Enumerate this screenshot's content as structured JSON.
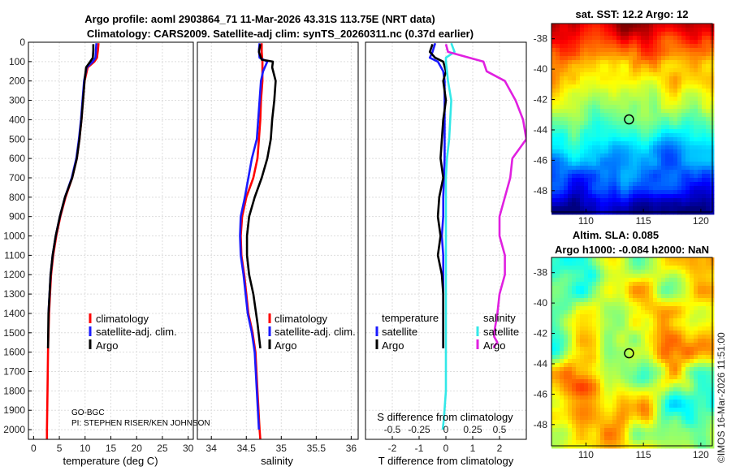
{
  "titles": {
    "line1": "Argo profile: aoml 2903864_71 11-Mar-2026 43.31S 113.75E (NRT data)",
    "line2": "Climatology: CARS2009. Satellite-adj clim: synTS_20260311.nc (0.37d earlier)",
    "sst": "sat. SST: 12.2 Argo: 12",
    "sla1": "Altim. SLA: 0.085",
    "sla2": "Argo h1000: -0.084 h2000: NaN"
  },
  "footer": {
    "program": "GO-BGC",
    "pi": "PI: STEPHEN RISER/KEN JOHNSON",
    "imos": "©IMOS 16-Mar-2026 11:51:00"
  },
  "colors": {
    "climatology": "#ff0000",
    "satellite": "#1a1aff",
    "argo": "#000000",
    "sat_salinity": "#33e8e8",
    "argo_salinity": "#e020e0"
  },
  "legends": {
    "temp": [
      "climatology",
      "satellite-adj. clim.",
      "Argo"
    ],
    "sal": [
      "climatology",
      "satellite-adj. clim.",
      "Argo"
    ],
    "diff_t_header": "temperature",
    "diff_s_header": "salinity",
    "diff_t": [
      "satellite",
      "Argo"
    ],
    "diff_s": [
      "satellite",
      "Argo"
    ]
  },
  "chart_data": [
    {
      "type": "line",
      "name": "temperature",
      "xlabel": "temperature (deg C)",
      "xlim": [
        -1,
        31
      ],
      "xticks": [
        0,
        5,
        10,
        15,
        20,
        25,
        30
      ],
      "ylim": [
        2050,
        0
      ],
      "yticks": [
        0,
        100,
        200,
        300,
        400,
        500,
        600,
        700,
        800,
        900,
        1000,
        1100,
        1200,
        1300,
        1400,
        1500,
        1600,
        1700,
        1800,
        1900,
        2000
      ],
      "series": [
        {
          "name": "climatology",
          "color": "#ff0000",
          "x": [
            12.6,
            12.5,
            12.3,
            11.8,
            10.5,
            9.9,
            9.6,
            9.3,
            8.9,
            8.4,
            7.5,
            6.2,
            5.2,
            4.4,
            3.8,
            3.4,
            3.2,
            3.0,
            2.9,
            2.8,
            2.7,
            2.6,
            2.6
          ],
          "y": [
            5,
            40,
            80,
            100,
            130,
            200,
            300,
            400,
            500,
            600,
            700,
            800,
            900,
            1000,
            1100,
            1200,
            1300,
            1400,
            1500,
            1600,
            1800,
            2000,
            2050
          ]
        },
        {
          "name": "satellite-adj. clim.",
          "color": "#1a1aff",
          "x": [
            12.2,
            12.1,
            12.0,
            11.5,
            10.3,
            9.8,
            9.5,
            9.2,
            8.8,
            8.3,
            7.4,
            6.1,
            5.1,
            4.3,
            3.7,
            3.3,
            3.1,
            2.9
          ],
          "y": [
            5,
            40,
            80,
            100,
            130,
            200,
            300,
            400,
            500,
            600,
            700,
            800,
            900,
            1000,
            1100,
            1200,
            1300,
            1400
          ]
        },
        {
          "name": "Argo",
          "color": "#000000",
          "x": [
            11.6,
            11.6,
            11.5,
            11.0,
            10.2,
            9.9,
            9.6,
            9.3,
            8.9,
            8.4,
            7.5,
            6.1,
            5.1,
            4.3,
            3.7,
            3.3,
            3.1,
            2.9,
            2.8
          ],
          "y": [
            10,
            40,
            80,
            100,
            130,
            200,
            300,
            400,
            500,
            600,
            700,
            800,
            900,
            1000,
            1100,
            1200,
            1300,
            1400,
            1580
          ]
        }
      ]
    },
    {
      "type": "line",
      "name": "salinity",
      "xlabel": "salinity",
      "xlim": [
        33.8,
        36.1
      ],
      "xticks": [
        34,
        34.5,
        35,
        35.5,
        36
      ],
      "xticklabels": [
        "34",
        "34.5",
        "35",
        "35.5",
        "36"
      ],
      "ylim": [
        2050,
        0
      ],
      "series": [
        {
          "name": "climatology",
          "color": "#ff0000",
          "x": [
            34.72,
            34.72,
            34.73,
            34.73,
            34.71,
            34.7,
            34.68,
            34.66,
            34.6,
            34.5,
            34.44,
            34.42,
            34.43,
            34.47,
            34.53,
            34.59,
            34.63,
            34.66,
            34.69,
            34.7
          ],
          "y": [
            5,
            50,
            100,
            200,
            300,
            400,
            500,
            600,
            700,
            800,
            900,
            1000,
            1100,
            1200,
            1400,
            1500,
            1600,
            1800,
            2000,
            2050
          ]
        },
        {
          "name": "satellite-adj. clim.",
          "color": "#1a1aff",
          "x": [
            34.69,
            34.68,
            34.69,
            34.8,
            34.74,
            34.71,
            34.69,
            34.67,
            34.65,
            34.58,
            34.48,
            34.42,
            34.41,
            34.42,
            34.46,
            34.52,
            34.58,
            34.62,
            34.65,
            34.68
          ],
          "y": [
            5,
            40,
            80,
            100,
            150,
            200,
            300,
            400,
            500,
            600,
            800,
            900,
            1000,
            1100,
            1200,
            1400,
            1500,
            1600,
            1800,
            2000
          ]
        },
        {
          "name": "Argo",
          "color": "#000000",
          "x": [
            34.7,
            34.68,
            34.72,
            34.88,
            34.87,
            34.92,
            34.9,
            34.87,
            34.85,
            34.8,
            34.72,
            34.62,
            34.54,
            34.51,
            34.51,
            34.54,
            34.6,
            34.66,
            34.7
          ],
          "y": [
            10,
            50,
            90,
            100,
            130,
            200,
            300,
            400,
            500,
            600,
            700,
            800,
            900,
            1000,
            1100,
            1200,
            1300,
            1450,
            1580
          ]
        }
      ]
    },
    {
      "type": "line",
      "name": "difference",
      "xlabel": "T difference from climatology",
      "xlabel_top": "S difference from climatology",
      "xlim": [
        -3,
        3
      ],
      "xticks": [
        -2,
        -1,
        0,
        1,
        2
      ],
      "xticks_s": [
        -0.5,
        -0.25,
        0,
        0.25,
        0.5
      ],
      "xticklabels_s": [
        "-0.5",
        "-0.25",
        "0",
        "0.25",
        "0.5"
      ],
      "ylim": [
        2050,
        0
      ],
      "series": [
        {
          "name": "temperature satellite",
          "color": "#1a1aff",
          "x": [
            -0.4,
            -0.5,
            -0.6,
            -0.3,
            -0.1,
            -0.05,
            -0.05,
            -0.05,
            -0.1,
            -0.1,
            -0.15,
            -0.1,
            -0.1,
            -0.1,
            -0.1,
            -0.1,
            -0.1,
            -0.1
          ],
          "y": [
            5,
            50,
            80,
            100,
            150,
            200,
            400,
            600,
            800,
            900,
            1000,
            1100,
            1200,
            1300,
            1400,
            1500,
            1550,
            1580
          ]
        },
        {
          "name": "temperature Argo",
          "color": "#000000",
          "x": [
            -0.5,
            -0.6,
            -0.4,
            -0.1,
            0.0,
            -0.1,
            0.0,
            -0.1,
            -0.2,
            -0.1,
            -0.25,
            -0.3,
            -0.2,
            -0.3,
            -0.15,
            -0.1,
            -0.1,
            -0.1,
            -0.1
          ],
          "y": [
            10,
            50,
            80,
            100,
            150,
            200,
            300,
            400,
            600,
            700,
            800,
            900,
            1000,
            1100,
            1200,
            1300,
            1400,
            1500,
            1580
          ]
        },
        {
          "name": "salinity satellite",
          "color": "#33e8e8",
          "x": [
            0.05,
            0.08,
            0.0,
            0.0,
            0.02,
            0.05,
            0.04,
            0.03,
            0.01,
            0.0,
            0.0,
            0.0,
            0.0,
            0.0,
            0.0,
            0.0,
            -0.02,
            -0.03
          ],
          "y": [
            5,
            50,
            80,
            100,
            200,
            300,
            400,
            500,
            600,
            700,
            800,
            1000,
            1200,
            1400,
            1600,
            1800,
            1950,
            2000
          ]
        },
        {
          "name": "salinity Argo",
          "color": "#e020e0",
          "x": [
            0.0,
            0.02,
            0.35,
            0.38,
            0.55,
            0.65,
            0.72,
            0.75,
            0.62,
            0.6,
            0.55,
            0.5,
            0.5,
            0.55,
            0.55,
            0.5,
            0.48,
            0.45,
            0.45,
            0.48,
            0.45,
            0.45
          ],
          "y": [
            10,
            50,
            100,
            150,
            200,
            300,
            400,
            500,
            600,
            700,
            800,
            900,
            1000,
            1100,
            1200,
            1300,
            1400,
            1500,
            1520,
            1550,
            1570,
            1580
          ]
        }
      ]
    },
    {
      "type": "heatmap",
      "name": "sst map",
      "xlim": [
        107,
        121
      ],
      "ylim": [
        -49.4,
        -37
      ],
      "xticks": [
        110,
        115,
        120
      ],
      "yticks": [
        -38,
        -40,
        -42,
        -44,
        -46,
        -48
      ],
      "marker": {
        "lon": 113.75,
        "lat": -43.31
      }
    },
    {
      "type": "heatmap",
      "name": "sla map",
      "xlim": [
        107,
        121
      ],
      "ylim": [
        -49.4,
        -37
      ],
      "xticks": [
        110,
        115,
        120
      ],
      "yticks": [
        -38,
        -40,
        -42,
        -44,
        -46,
        -48
      ],
      "marker": {
        "lon": 113.75,
        "lat": -43.31
      }
    }
  ]
}
